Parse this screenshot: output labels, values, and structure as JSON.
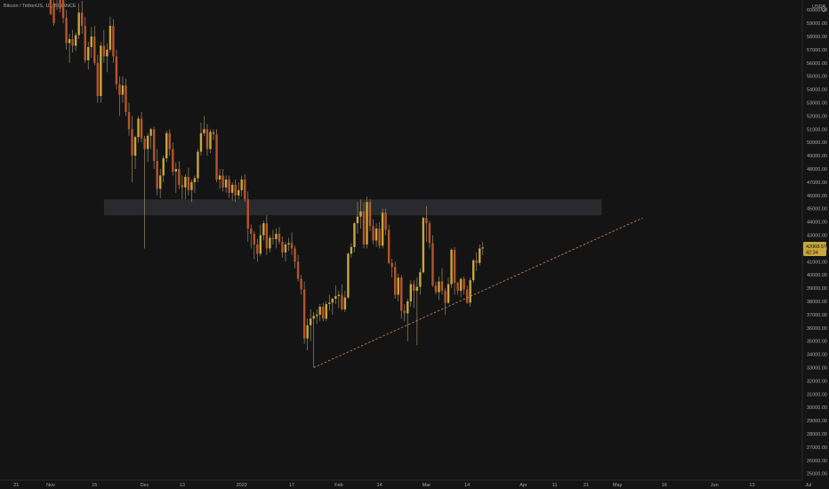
{
  "header": {
    "symbol_line": "Bitcoin / TetherUS, 1D, BINANCE",
    "currency": "USDT"
  },
  "price_badge": {
    "price": "42068.57",
    "countdown": "42:34"
  },
  "colors": {
    "background": "#141414",
    "up": "#c8a63c",
    "down": "#b8542a",
    "wick": "#9a8a6a",
    "zone": "#2a2c30",
    "trend": "#d08a5a",
    "badge": "#c8a63c",
    "axis_text": "#a8a8a8"
  },
  "chart_data": {
    "type": "candlestick",
    "y_ticks": [
      "25000.00",
      "26000.00",
      "27000.00",
      "28000.00",
      "29000.00",
      "30000.00",
      "31000.00",
      "32000.00",
      "33000.00",
      "34000.00",
      "35000.00",
      "36000.00",
      "37000.00",
      "38000.00",
      "39000.00",
      "40000.00",
      "41000.00",
      "42000.00",
      "43000.00",
      "44000.00",
      "45000.00",
      "46000.00",
      "47000.00",
      "48000.00",
      "49000.00",
      "50000.00",
      "51000.00",
      "52000.00",
      "53000.00",
      "54000.00",
      "55000.00",
      "56000.00",
      "57000.00",
      "58000.00",
      "59000.00",
      "60000.00"
    ],
    "x_ticks": [
      {
        "label": "21",
        "day": -11
      },
      {
        "label": "Nov",
        "day": 0
      },
      {
        "label": "15",
        "day": 14
      },
      {
        "label": "Dec",
        "day": 30
      },
      {
        "label": "13",
        "day": 42
      },
      {
        "label": "2022",
        "day": 61
      },
      {
        "label": "17",
        "day": 77
      },
      {
        "label": "Feb",
        "day": 92
      },
      {
        "label": "14",
        "day": 105
      },
      {
        "label": "Mar",
        "day": 120
      },
      {
        "label": "14",
        "day": 133
      },
      {
        "label": "Apr",
        "day": 151
      },
      {
        "label": "11",
        "day": 161
      },
      {
        "label": "21",
        "day": 171
      },
      {
        "label": "May",
        "day": 181
      },
      {
        "label": "16",
        "day": 196
      },
      {
        "label": "Jun",
        "day": 212
      },
      {
        "label": "13",
        "day": 224
      },
      {
        "label": "Jul",
        "day": 242
      }
    ],
    "zone": {
      "from_day": 17,
      "to_day": 176,
      "low": 44500,
      "high": 45700
    },
    "trendline": {
      "from_day": 84,
      "from_price": 33000,
      "to_day": 189,
      "to_price": 44300
    },
    "candles": [
      [
        0,
        61500,
        61800,
        59600,
        59700
      ],
      [
        1,
        60500,
        61000,
        58800,
        59000
      ],
      [
        2,
        60800,
        61500,
        60000,
        61200
      ],
      [
        3,
        61200,
        61700,
        59800,
        60100
      ],
      [
        4,
        61000,
        61300,
        59000,
        59400
      ],
      [
        5,
        59400,
        60000,
        57000,
        57500
      ],
      [
        6,
        57500,
        58200,
        56000,
        57800
      ],
      [
        7,
        57800,
        58500,
        56800,
        57300
      ],
      [
        8,
        57300,
        58300,
        56900,
        58100
      ],
      [
        9,
        58100,
        60500,
        57800,
        59800
      ],
      [
        10,
        59800,
        60700,
        58200,
        58800
      ],
      [
        11,
        58800,
        59500,
        56000,
        56200
      ],
      [
        12,
        56200,
        57600,
        55500,
        57200
      ],
      [
        13,
        57200,
        58700,
        56400,
        58000
      ],
      [
        14,
        58000,
        58800,
        55800,
        56000
      ],
      [
        15,
        56000,
        56600,
        53000,
        53500
      ],
      [
        16,
        53500,
        57600,
        53000,
        57300
      ],
      [
        17,
        57300,
        58500,
        56000,
        56500
      ],
      [
        18,
        56500,
        57500,
        55300,
        57000
      ],
      [
        19,
        57000,
        59500,
        56800,
        58800
      ],
      [
        20,
        58800,
        59300,
        56000,
        56500
      ],
      [
        21,
        56500,
        57000,
        54000,
        54400
      ],
      [
        22,
        54400,
        55000,
        52000,
        53600
      ],
      [
        23,
        53600,
        55000,
        53000,
        54300
      ],
      [
        24,
        54300,
        54800,
        52000,
        52300
      ],
      [
        25,
        52300,
        53000,
        50500,
        51000
      ],
      [
        26,
        51000,
        52000,
        47000,
        49000
      ],
      [
        27,
        49000,
        50500,
        48000,
        50400
      ],
      [
        28,
        50400,
        52000,
        50000,
        51800
      ],
      [
        29,
        51800,
        52300,
        50000,
        50300
      ],
      [
        30,
        50300,
        50500,
        42000,
        49500
      ],
      [
        31,
        49500,
        50700,
        48500,
        50500
      ],
      [
        32,
        50500,
        51100,
        49500,
        51000
      ],
      [
        33,
        51000,
        51200,
        48000,
        48600
      ],
      [
        34,
        48600,
        49500,
        46000,
        46500
      ],
      [
        35,
        46500,
        48000,
        45800,
        47500
      ],
      [
        36,
        47500,
        49000,
        47000,
        48800
      ],
      [
        37,
        48800,
        50900,
        48500,
        50700
      ],
      [
        38,
        50700,
        51000,
        49000,
        49500
      ],
      [
        39,
        49500,
        50000,
        47500,
        47800
      ],
      [
        40,
        47800,
        48500,
        46200,
        48000
      ],
      [
        41,
        48000,
        48600,
        46500,
        46800
      ],
      [
        42,
        46800,
        47500,
        45700,
        46600
      ],
      [
        43,
        46600,
        47600,
        45700,
        47400
      ],
      [
        44,
        47400,
        48100,
        46000,
        46400
      ],
      [
        45,
        46400,
        47200,
        45500,
        47000
      ],
      [
        46,
        47000,
        47500,
        46200,
        47300
      ],
      [
        47,
        47300,
        49500,
        47000,
        49300
      ],
      [
        48,
        49300,
        51500,
        49000,
        50700
      ],
      [
        49,
        50700,
        52000,
        50500,
        51000
      ],
      [
        50,
        51000,
        51400,
        49000,
        49500
      ],
      [
        51,
        49500,
        51000,
        49200,
        50800
      ],
      [
        52,
        50800,
        51000,
        50200,
        50600
      ],
      [
        53,
        50600,
        51000,
        47000,
        47200
      ],
      [
        54,
        47200,
        48000,
        46500,
        47500
      ],
      [
        55,
        47500,
        48000,
        46300,
        46600
      ],
      [
        56,
        46600,
        47500,
        46200,
        47200
      ],
      [
        57,
        47200,
        47500,
        45800,
        46200
      ],
      [
        58,
        46200,
        47000,
        45600,
        46800
      ],
      [
        59,
        46800,
        47200,
        45500,
        46000
      ],
      [
        60,
        46000,
        47000,
        45700,
        46400
      ],
      [
        61,
        46400,
        47500,
        45900,
        47200
      ],
      [
        62,
        47200,
        47600,
        45500,
        45700
      ],
      [
        63,
        45700,
        46300,
        42500,
        43500
      ],
      [
        64,
        43500,
        43800,
        42000,
        43100
      ],
      [
        65,
        43100,
        43300,
        41200,
        42300
      ],
      [
        66,
        42300,
        42700,
        41000,
        41600
      ],
      [
        67,
        41600,
        43800,
        41400,
        43000
      ],
      [
        68,
        43000,
        44100,
        42600,
        43900
      ],
      [
        69,
        43900,
        44500,
        41500,
        42000
      ],
      [
        70,
        42000,
        43000,
        41700,
        42800
      ],
      [
        71,
        42800,
        43400,
        42300,
        42700
      ],
      [
        72,
        42700,
        43500,
        42000,
        43100
      ],
      [
        73,
        43100,
        43600,
        42300,
        42500
      ],
      [
        74,
        42500,
        42900,
        41300,
        41700
      ],
      [
        75,
        41700,
        42500,
        41000,
        42300
      ],
      [
        76,
        42300,
        42800,
        41800,
        42400
      ],
      [
        77,
        42400,
        43200,
        41500,
        42000
      ],
      [
        78,
        42000,
        42200,
        40500,
        41000
      ],
      [
        79,
        41000,
        41500,
        39500,
        39700
      ],
      [
        80,
        39700,
        40000,
        38500,
        38900
      ],
      [
        81,
        38900,
        39500,
        34800,
        35200
      ],
      [
        82,
        35200,
        36700,
        34300,
        36200
      ],
      [
        83,
        36200,
        37400,
        35000,
        36700
      ],
      [
        84,
        36700,
        37200,
        33000,
        36900
      ],
      [
        85,
        36900,
        37400,
        36300,
        37000
      ],
      [
        86,
        37000,
        37800,
        36500,
        37600
      ],
      [
        87,
        37600,
        37900,
        36500,
        36700
      ],
      [
        88,
        36700,
        38000,
        36500,
        37800
      ],
      [
        89,
        37800,
        38500,
        37300,
        37900
      ],
      [
        90,
        37900,
        38300,
        37000,
        38200
      ],
      [
        91,
        38200,
        39200,
        37800,
        38400
      ],
      [
        92,
        38400,
        38800,
        37500,
        38500
      ],
      [
        93,
        38500,
        39300,
        37300,
        37400
      ],
      [
        94,
        37400,
        38800,
        37200,
        38300
      ],
      [
        95,
        38300,
        41700,
        38200,
        41600
      ],
      [
        96,
        41600,
        42400,
        41300,
        42100
      ],
      [
        97,
        42100,
        44000,
        41700,
        43900
      ],
      [
        98,
        43900,
        45500,
        43100,
        44400
      ],
      [
        99,
        44400,
        45700,
        43500,
        44800
      ],
      [
        100,
        44800,
        45500,
        42000,
        42300
      ],
      [
        101,
        42300,
        45900,
        42000,
        45500
      ],
      [
        102,
        45500,
        45700,
        43300,
        43700
      ],
      [
        103,
        43700,
        44200,
        42300,
        42600
      ],
      [
        104,
        42600,
        43900,
        42100,
        43500
      ],
      [
        105,
        43500,
        44000,
        42000,
        42200
      ],
      [
        106,
        42200,
        45000,
        42000,
        44700
      ],
      [
        107,
        44700,
        45000,
        43000,
        43400
      ],
      [
        108,
        43400,
        43800,
        40800,
        40900
      ],
      [
        109,
        40900,
        41200,
        39800,
        40600
      ],
      [
        110,
        40600,
        41000,
        38200,
        38500
      ],
      [
        111,
        38500,
        40100,
        38000,
        39800
      ],
      [
        112,
        39800,
        40000,
        36700,
        37300
      ],
      [
        113,
        37300,
        37800,
        36500,
        37100
      ],
      [
        114,
        37100,
        38200,
        35000,
        38000
      ],
      [
        115,
        38000,
        39600,
        37600,
        39300
      ],
      [
        116,
        39300,
        39600,
        37500,
        38800
      ],
      [
        117,
        38800,
        39800,
        34700,
        39100
      ],
      [
        118,
        39100,
        40500,
        38500,
        40200
      ],
      [
        119,
        40200,
        44400,
        40100,
        44300
      ],
      [
        120,
        44300,
        45200,
        42500,
        43900
      ],
      [
        121,
        43900,
        44100,
        42000,
        42400
      ],
      [
        122,
        42400,
        43000,
        39100,
        39200
      ],
      [
        123,
        39200,
        39500,
        38500,
        38700
      ],
      [
        124,
        38700,
        39900,
        38100,
        39500
      ],
      [
        125,
        39500,
        40500,
        38500,
        38800
      ],
      [
        126,
        38800,
        39000,
        37000,
        37900
      ],
      [
        127,
        37900,
        39800,
        37800,
        39300
      ],
      [
        128,
        39300,
        42000,
        39000,
        41900
      ],
      [
        129,
        41900,
        42100,
        38500,
        39400
      ],
      [
        130,
        39400,
        39500,
        38500,
        38800
      ],
      [
        131,
        38800,
        39800,
        38300,
        39700
      ],
      [
        132,
        39700,
        39900,
        38500,
        38900
      ],
      [
        133,
        38900,
        39200,
        37800,
        37900
      ],
      [
        134,
        37900,
        39800,
        37600,
        39600
      ],
      [
        135,
        39600,
        41200,
        39400,
        41100
      ],
      [
        136,
        41100,
        41700,
        40300,
        40900
      ],
      [
        137,
        40900,
        42300,
        40700,
        42000
      ],
      [
        138,
        42000,
        42500,
        41500,
        42068.57
      ]
    ]
  }
}
